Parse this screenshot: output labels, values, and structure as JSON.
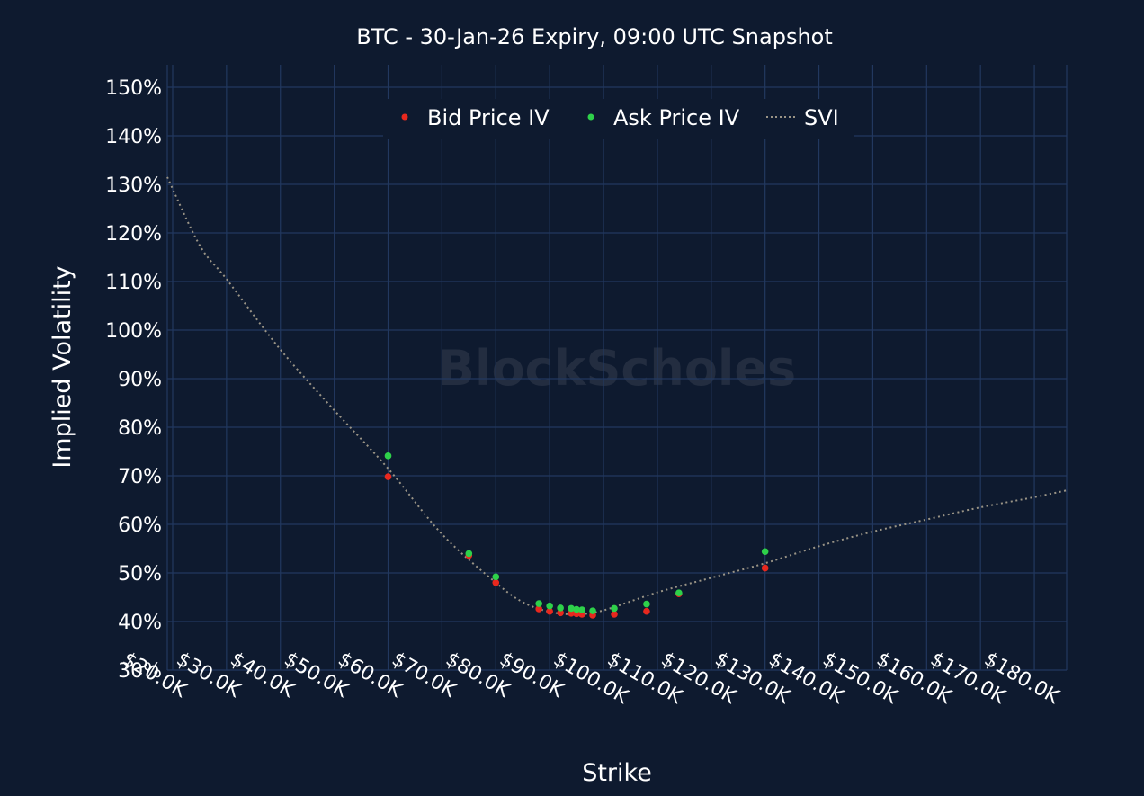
{
  "chart_data": {
    "type": "scatter",
    "title": "BTC - 30-Jan-26 Expiry, 09:00 UTC Snapshot",
    "xlabel": "Strike",
    "ylabel": "Implied Volatility",
    "watermark": "BlockScholes",
    "xlim": [
      19000,
      186000
    ],
    "ylim": [
      30,
      150
    ],
    "x_ticks": [
      20000,
      30000,
      40000,
      50000,
      60000,
      70000,
      80000,
      90000,
      100000,
      110000,
      120000,
      130000,
      140000,
      150000,
      160000,
      170000,
      180000
    ],
    "x_tick_labels": [
      "$20.0K",
      "$30.0K",
      "$40.0K",
      "$50.0K",
      "$60.0K",
      "$70.0K",
      "$80.0K",
      "$90.0K",
      "$100.0K",
      "$110.0K",
      "$120.0K",
      "$130.0K",
      "$140.0K",
      "$150.0K",
      "$160.0K",
      "$170.0K",
      "$180.0K"
    ],
    "y_ticks": [
      30,
      40,
      50,
      60,
      70,
      80,
      90,
      100,
      110,
      120,
      130,
      140,
      150
    ],
    "y_tick_labels": [
      "30%",
      "40%",
      "50%",
      "60%",
      "70%",
      "80%",
      "90%",
      "100%",
      "110%",
      "120%",
      "130%",
      "140%",
      "150%"
    ],
    "grid": true,
    "legend_position": "top-center",
    "series": [
      {
        "name": "Bid Price IV",
        "kind": "scatter",
        "color": "#e8281e",
        "x": [
          60000,
          75000,
          80000,
          88000,
          90000,
          92000,
          94000,
          95000,
          96000,
          98000,
          102000,
          108000,
          114000,
          130000
        ],
        "y": [
          69.8,
          53.6,
          48.0,
          42.6,
          42.1,
          41.8,
          41.7,
          41.6,
          41.5,
          41.3,
          41.5,
          42.1,
          45.7,
          51.0
        ]
      },
      {
        "name": "Ask Price IV",
        "kind": "scatter",
        "color": "#2ed14a",
        "x": [
          60000,
          75000,
          80000,
          88000,
          90000,
          92000,
          94000,
          95000,
          96000,
          98000,
          102000,
          108000,
          114000,
          130000
        ],
        "y": [
          74.1,
          54.0,
          49.2,
          43.7,
          43.2,
          42.8,
          42.7,
          42.5,
          42.4,
          42.2,
          42.7,
          43.6,
          45.9,
          54.4
        ]
      },
      {
        "name": "SVI",
        "kind": "line",
        "style": "dotted",
        "color": "#9a9486",
        "x": [
          19000,
          25000,
          30000,
          40000,
          50000,
          60000,
          70000,
          80000,
          85000,
          90000,
          95000,
          100000,
          110000,
          120000,
          130000,
          140000,
          150000,
          160000,
          170000,
          180000,
          186000
        ],
        "y": [
          131.5,
          117.5,
          110.5,
          96.0,
          83.5,
          71.5,
          58.0,
          48.0,
          44.0,
          42.0,
          41.5,
          42.3,
          46.0,
          49.0,
          52.0,
          55.5,
          58.5,
          61.0,
          63.5,
          65.6,
          67.0
        ]
      }
    ]
  }
}
